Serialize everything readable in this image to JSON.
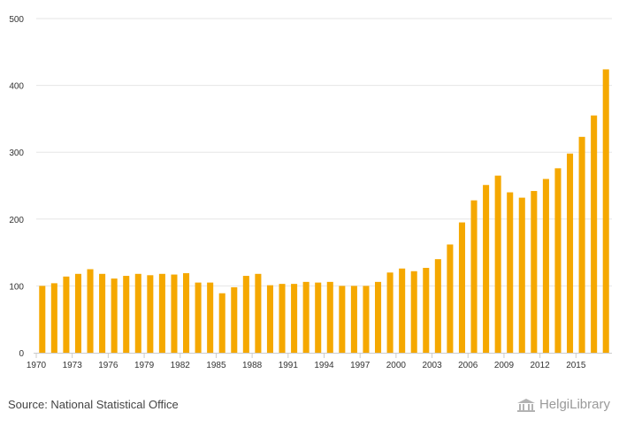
{
  "chart_data": {
    "type": "bar",
    "categories": [
      "1970",
      "1971",
      "1972",
      "1973",
      "1974",
      "1975",
      "1976",
      "1977",
      "1978",
      "1979",
      "1980",
      "1981",
      "1982",
      "1983",
      "1984",
      "1985",
      "1986",
      "1987",
      "1988",
      "1989",
      "1990",
      "1991",
      "1992",
      "1993",
      "1994",
      "1995",
      "1996",
      "1997",
      "1998",
      "1999",
      "2000",
      "2001",
      "2002",
      "2003",
      "2004",
      "2005",
      "2006",
      "2007",
      "2008",
      "2009",
      "2010",
      "2011",
      "2012",
      "2013",
      "2014",
      "2015",
      "2016",
      "2017"
    ],
    "values": [
      100,
      104,
      114,
      118,
      125,
      118,
      111,
      115,
      118,
      116,
      118,
      117,
      119,
      105,
      105,
      89,
      98,
      115,
      118,
      101,
      103,
      103,
      106,
      105,
      106,
      100,
      100,
      100,
      106,
      120,
      126,
      122,
      127,
      140,
      162,
      195,
      228,
      251,
      265,
      240,
      232,
      242,
      260,
      276,
      298,
      323,
      355,
      424
    ],
    "x_tick_labels": [
      "1970",
      "1973",
      "1976",
      "1979",
      "1982",
      "1985",
      "1988",
      "1991",
      "1994",
      "1997",
      "2000",
      "2003",
      "2006",
      "2009",
      "2012",
      "2015"
    ],
    "y_ticks": [
      0,
      100,
      200,
      300,
      400,
      500
    ],
    "ylim": [
      0,
      500
    ],
    "title": "",
    "xlabel": "",
    "ylabel": "",
    "grid": true,
    "bar_color": "#f5a800",
    "grid_color": "#e6e6e6",
    "axis_color": "#cccccc"
  },
  "footer": {
    "source_text": "Source: National Statistical Office",
    "brand_name": "HelgiLibrary",
    "brand_icon": "library-building-icon"
  }
}
